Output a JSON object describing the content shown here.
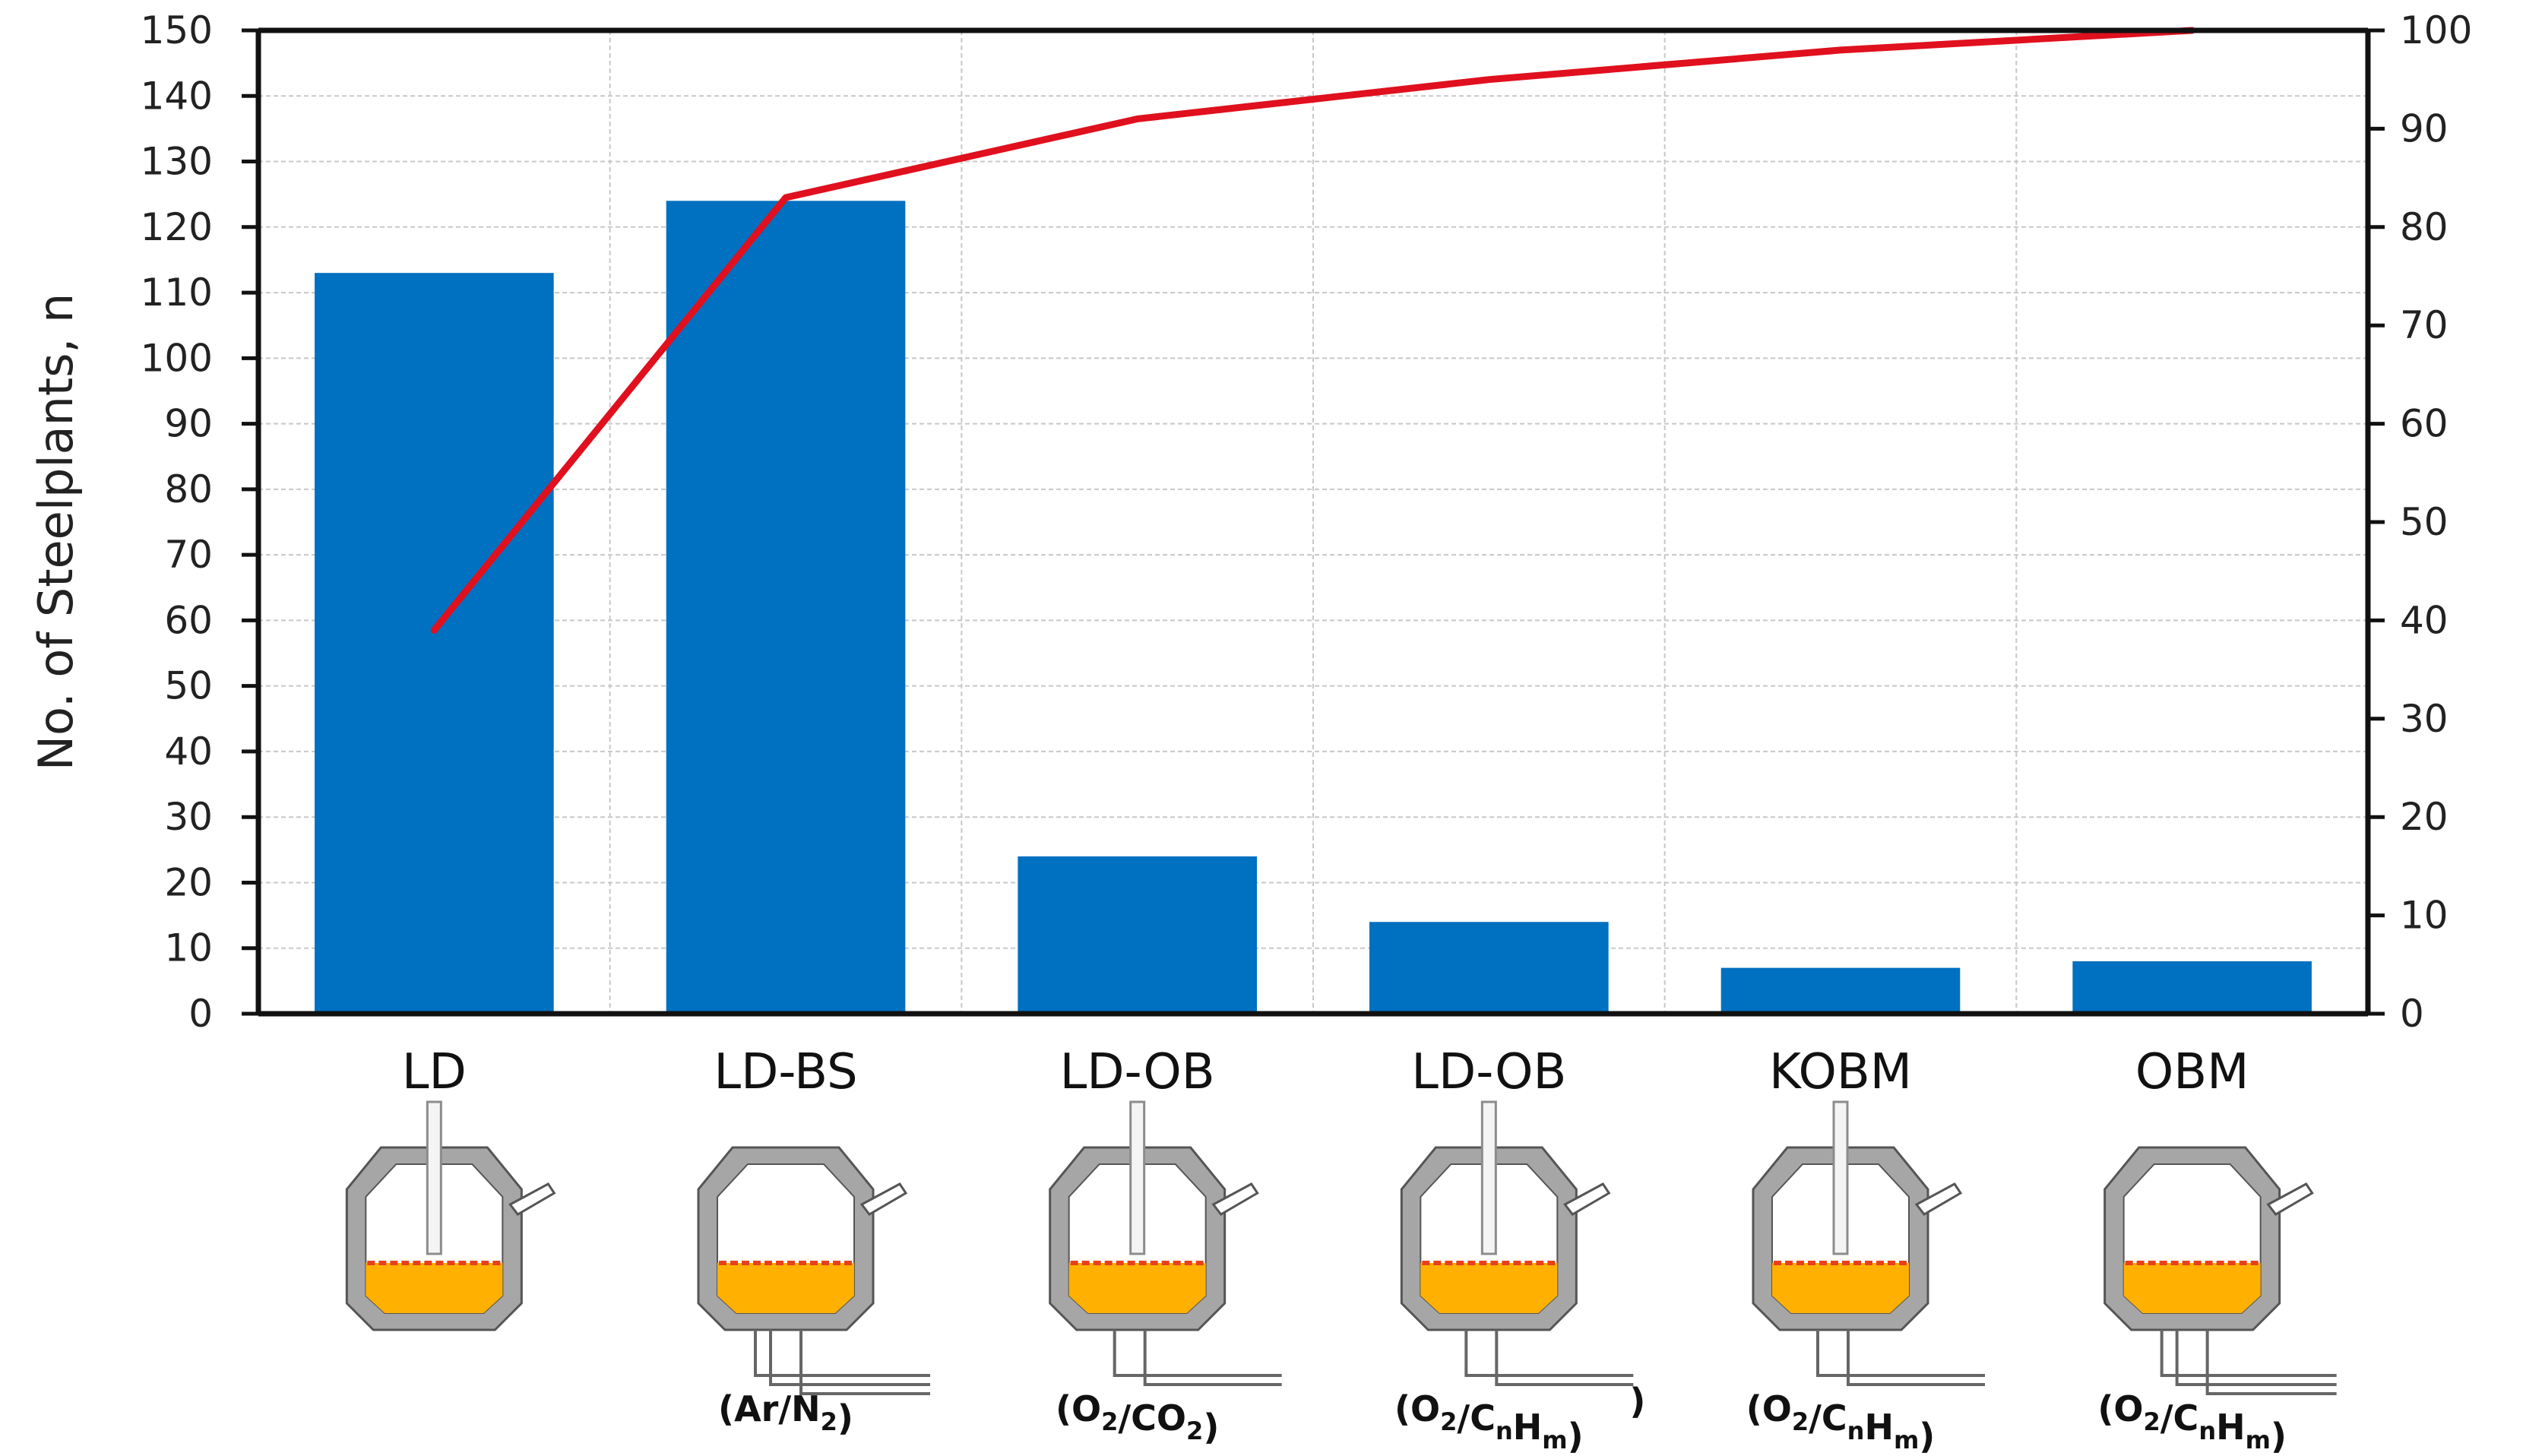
{
  "chart_data": {
    "type": "bar",
    "categories": [
      "LD",
      "LD-BS",
      "LD-OB",
      "LD-OB",
      "KOBM",
      "OBM"
    ],
    "gas_labels": [
      "",
      "(Ar/N2)",
      "(O2/CO2)",
      "(O2/CnHm)",
      "(O2/CnHm)",
      "(O2/CnHm)"
    ],
    "stray_mark": ")",
    "series": [
      {
        "type": "bar",
        "values": [
          113,
          124,
          24,
          14,
          7,
          8
        ],
        "color": "#0070c0",
        "axis": "left"
      },
      {
        "type": "line",
        "values": [
          39,
          83,
          91,
          95,
          98,
          100
        ],
        "color": "#e0101e",
        "axis": "right"
      }
    ],
    "ylabel": "No. of Steelplants, n",
    "ylim": [
      0,
      150
    ],
    "y_ticks": [
      0,
      10,
      20,
      30,
      40,
      50,
      60,
      70,
      80,
      90,
      100,
      110,
      120,
      130,
      140,
      150
    ],
    "y2lim": [
      0,
      100
    ],
    "y2_ticks": [
      0,
      10,
      20,
      30,
      40,
      50,
      60,
      70,
      80,
      90,
      100
    ],
    "grid": true,
    "vessel_colors": {
      "wall": "#a6a6a6",
      "wall_stroke": "#555555",
      "melt": "#ffb000",
      "slag": "#e8401c"
    }
  }
}
